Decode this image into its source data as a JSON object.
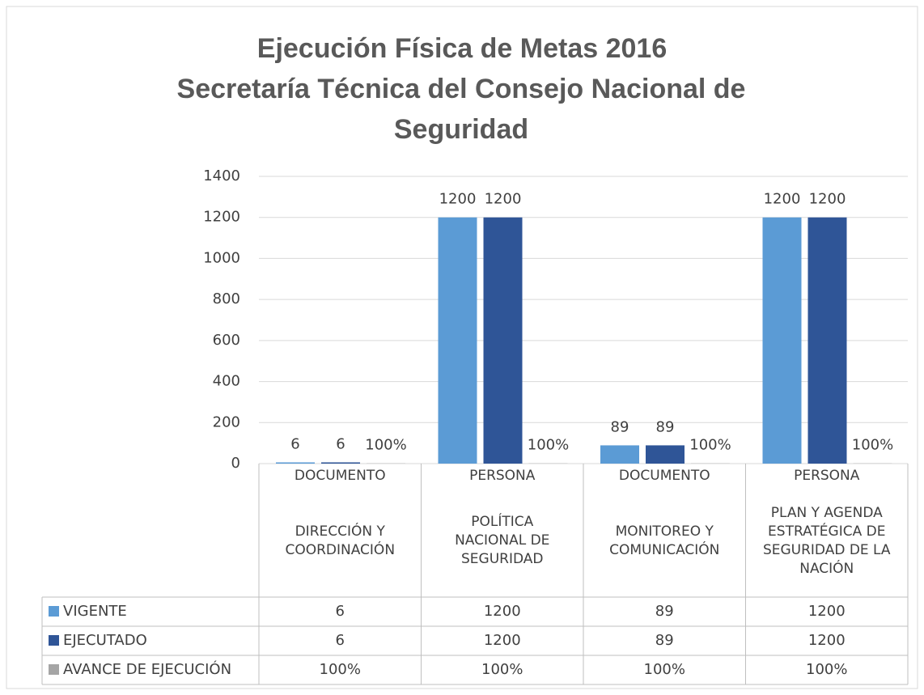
{
  "chart_data": {
    "type": "bar",
    "title": "Ejecución Física de Metas 2016",
    "subtitle": "Secretaría Técnica del Consejo Nacional de Seguridad",
    "units": [
      "DOCUMENTO",
      "PERSONA",
      "DOCUMENTO",
      "PERSONA"
    ],
    "categories": [
      "DIRECCIÓN Y COORDINACIÓN",
      "POLÍTICA NACIONAL DE SEGURIDAD",
      "MONITOREO Y COMUNICACIÓN",
      "PLAN Y AGENDA ESTRATÉGICA DE SEGURIDAD DE LA NACIÓN"
    ],
    "series": [
      {
        "name": "VIGENTE",
        "color": "#5b9bd5",
        "values": [
          6,
          1200,
          89,
          1200
        ]
      },
      {
        "name": "EJECUTADO",
        "color": "#2f5597",
        "values": [
          6,
          1200,
          89,
          1200
        ]
      },
      {
        "name": "AVANCE DE EJECUCIÓN",
        "color": "#a5a5a5",
        "values": [
          1,
          1,
          1,
          1
        ],
        "value_labels": [
          "100%",
          "100%",
          "100%",
          "100%"
        ]
      }
    ],
    "ylim": [
      0,
      1400
    ],
    "yticks": [
      0,
      200,
      400,
      600,
      800,
      1000,
      1200,
      1400
    ],
    "grid": true,
    "data_table": true
  }
}
